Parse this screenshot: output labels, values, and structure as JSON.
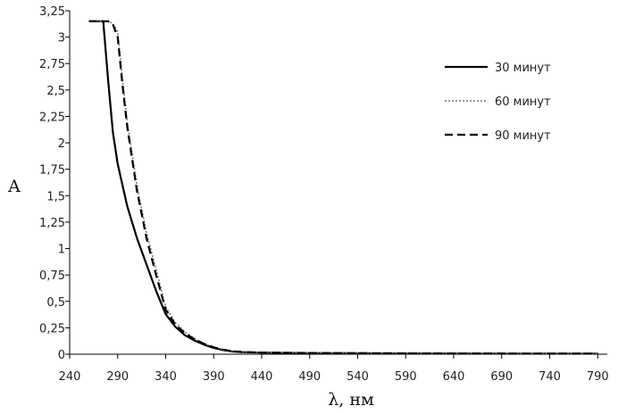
{
  "chart_data": {
    "type": "line",
    "title": "",
    "xlabel": "λ, нм",
    "ylabel": "A",
    "xlim": [
      240,
      800
    ],
    "ylim": [
      0,
      3.25
    ],
    "x_ticks": [
      240,
      290,
      340,
      390,
      440,
      490,
      540,
      590,
      640,
      690,
      740,
      790
    ],
    "x_tick_labels": [
      "240",
      "290",
      "340",
      "390",
      "440",
      "490",
      "540",
      "590",
      "640",
      "690",
      "740",
      "790"
    ],
    "y_ticks": [
      0,
      0.25,
      0.5,
      0.75,
      1,
      1.25,
      1.5,
      1.75,
      2,
      2.25,
      2.5,
      2.75,
      3,
      3.25
    ],
    "y_tick_labels": [
      "0",
      "0,25",
      "0,5",
      "0,75",
      "1",
      "1,25",
      "1,5",
      "1,75",
      "2",
      "2,25",
      "2,5",
      "2,75",
      "3",
      "3,25"
    ],
    "grid": false,
    "legend_position": "top-right",
    "series": [
      {
        "name": "30 минут",
        "style": "solid",
        "color": "#000000",
        "x": [
          260,
          275,
          280,
          285,
          290,
          300,
          310,
          320,
          330,
          340,
          350,
          360,
          370,
          380,
          390,
          400,
          410,
          420,
          440,
          500,
          600,
          700,
          790
        ],
        "y": [
          3.15,
          3.15,
          2.6,
          2.1,
          1.8,
          1.4,
          1.1,
          0.85,
          0.6,
          0.38,
          0.26,
          0.18,
          0.13,
          0.09,
          0.06,
          0.04,
          0.025,
          0.02,
          0.015,
          0.01,
          0.008,
          0.006,
          0.005
        ]
      },
      {
        "name": "60 минут",
        "style": "dotted",
        "color": "#777777",
        "x": [
          260,
          280,
          285,
          290,
          295,
          300,
          310,
          320,
          330,
          340,
          350,
          360,
          370,
          380,
          390,
          400,
          410,
          420,
          440,
          500,
          600,
          700,
          790
        ],
        "y": [
          3.15,
          3.15,
          3.13,
          3.05,
          2.6,
          2.2,
          1.6,
          1.15,
          0.8,
          0.45,
          0.3,
          0.21,
          0.15,
          0.1,
          0.07,
          0.045,
          0.03,
          0.022,
          0.016,
          0.012,
          0.009,
          0.007,
          0.006
        ]
      },
      {
        "name": "90 минут",
        "style": "dashed",
        "color": "#000000",
        "x": [
          260,
          280,
          285,
          290,
          295,
          300,
          310,
          320,
          330,
          340,
          350,
          360,
          370,
          380,
          390,
          400,
          410,
          420,
          440,
          500,
          600,
          700,
          790
        ],
        "y": [
          3.15,
          3.15,
          3.12,
          3.0,
          2.55,
          2.15,
          1.55,
          1.1,
          0.75,
          0.42,
          0.28,
          0.2,
          0.14,
          0.1,
          0.065,
          0.042,
          0.028,
          0.02,
          0.015,
          0.011,
          0.008,
          0.006,
          0.005
        ]
      }
    ]
  }
}
